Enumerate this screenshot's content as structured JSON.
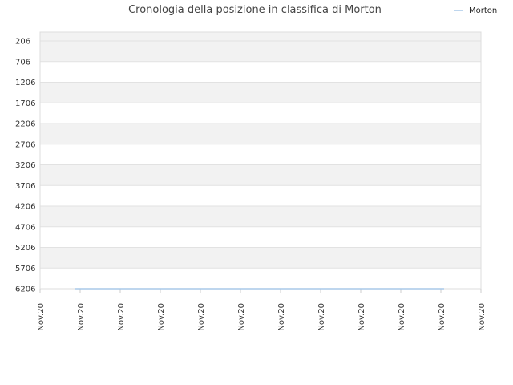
{
  "chart_data": {
    "type": "line",
    "title": "Cronologia della posizione in classifica di Morton",
    "xlabel": "",
    "ylabel": "",
    "y_axis_inverted": true,
    "ylim": [
      6206,
      206
    ],
    "y_ticks": [
      "206",
      "706",
      "1206",
      "1706",
      "2206",
      "2706",
      "3206",
      "3706",
      "4206",
      "4706",
      "5206",
      "5706",
      "6206"
    ],
    "x_ticks": [
      "Nov.20",
      "Nov.20",
      "Nov.20",
      "Nov.20",
      "Nov.20",
      "Nov.20",
      "Nov.20",
      "Nov.20",
      "Nov.20",
      "Nov.20",
      "Nov.20",
      "Nov.20"
    ],
    "grid": true,
    "legend_position": "top-right",
    "series": [
      {
        "name": "Morton",
        "color": "#a8c8e8",
        "x_start_tick": 1,
        "x_end_tick": 10,
        "values": [
          6206,
          6206
        ]
      }
    ]
  }
}
